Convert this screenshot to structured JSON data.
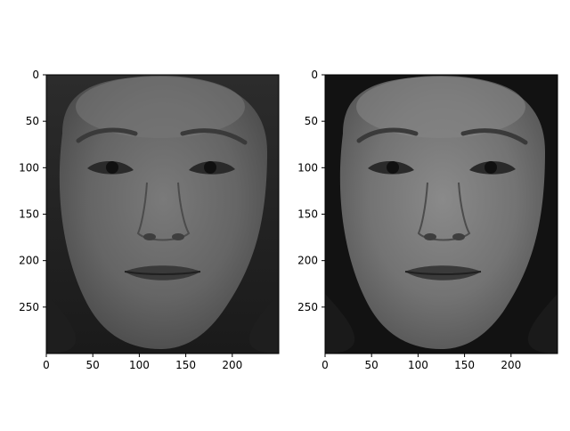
{
  "figure": {
    "panels": [
      {
        "id": "left",
        "xticks": [
          0,
          50,
          100,
          150,
          200
        ],
        "yticks": [
          0,
          50,
          100,
          150,
          200,
          250
        ],
        "x_range": [
          0,
          250
        ],
        "y_range": [
          0,
          300
        ],
        "y_inverted": true,
        "content": "grayscale-face-photo"
      },
      {
        "id": "right",
        "xticks": [
          0,
          50,
          100,
          150,
          200
        ],
        "yticks": [
          0,
          50,
          100,
          150,
          200,
          250
        ],
        "x_range": [
          0,
          250
        ],
        "y_range": [
          0,
          300
        ],
        "y_inverted": true,
        "content": "grayscale-face-photo-enhanced"
      }
    ]
  },
  "colors": {
    "axis": "#000000",
    "background": "#ffffff",
    "photo_dark": "#141414",
    "photo_skin_left": "#6a6a6a",
    "photo_skin_right": "#7a7a7a"
  }
}
